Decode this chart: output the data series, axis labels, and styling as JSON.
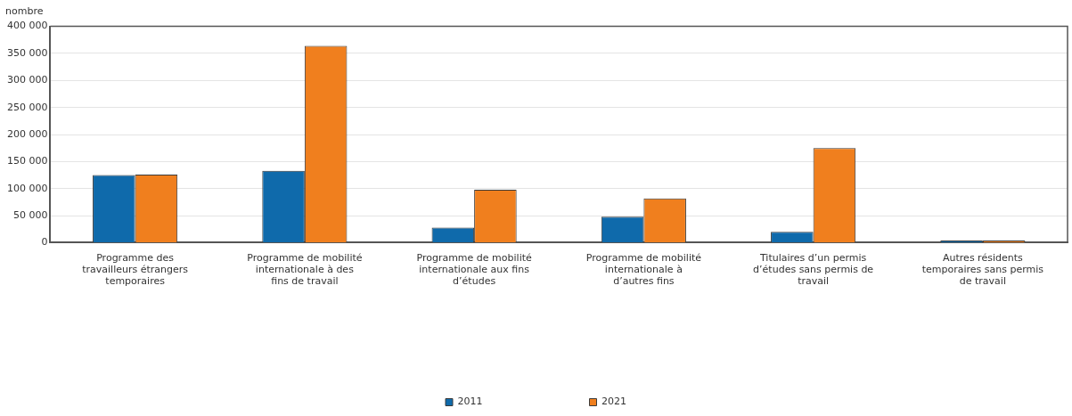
{
  "chart_data": {
    "type": "bar",
    "ylabel": "nombre",
    "categories": [
      "Programme des travailleurs étrangers temporaires",
      "Programme de mobilité internationale à des fins de travail",
      "Programme de mobilité internationale aux fins d’études",
      "Programme de mobilité internationale à d’autres fins",
      "Titulaires d’un permis d’études sans permis de travail",
      "Autres résidents temporaires sans permis de travail"
    ],
    "series": [
      {
        "name": "2011",
        "color": "#0f6aab",
        "values": [
          125000,
          133000,
          28000,
          48000,
          20000,
          4000
        ]
      },
      {
        "name": "2021",
        "color": "#f07f1e",
        "values": [
          126000,
          364000,
          98000,
          82000,
          175000,
          4000
        ]
      }
    ],
    "ylim": [
      0,
      400000
    ],
    "yticks": [
      {
        "value": 0,
        "label": "0"
      },
      {
        "value": 50000,
        "label": "50 000"
      },
      {
        "value": 100000,
        "label": "100 000"
      },
      {
        "value": 150000,
        "label": "150 000"
      },
      {
        "value": 200000,
        "label": "200 000"
      },
      {
        "value": 250000,
        "label": "250 000"
      },
      {
        "value": 300000,
        "label": "300 000"
      },
      {
        "value": 350000,
        "label": "350 000"
      },
      {
        "value": 400000,
        "label": "400 000"
      }
    ],
    "grid": "y",
    "legend": "bottom"
  }
}
